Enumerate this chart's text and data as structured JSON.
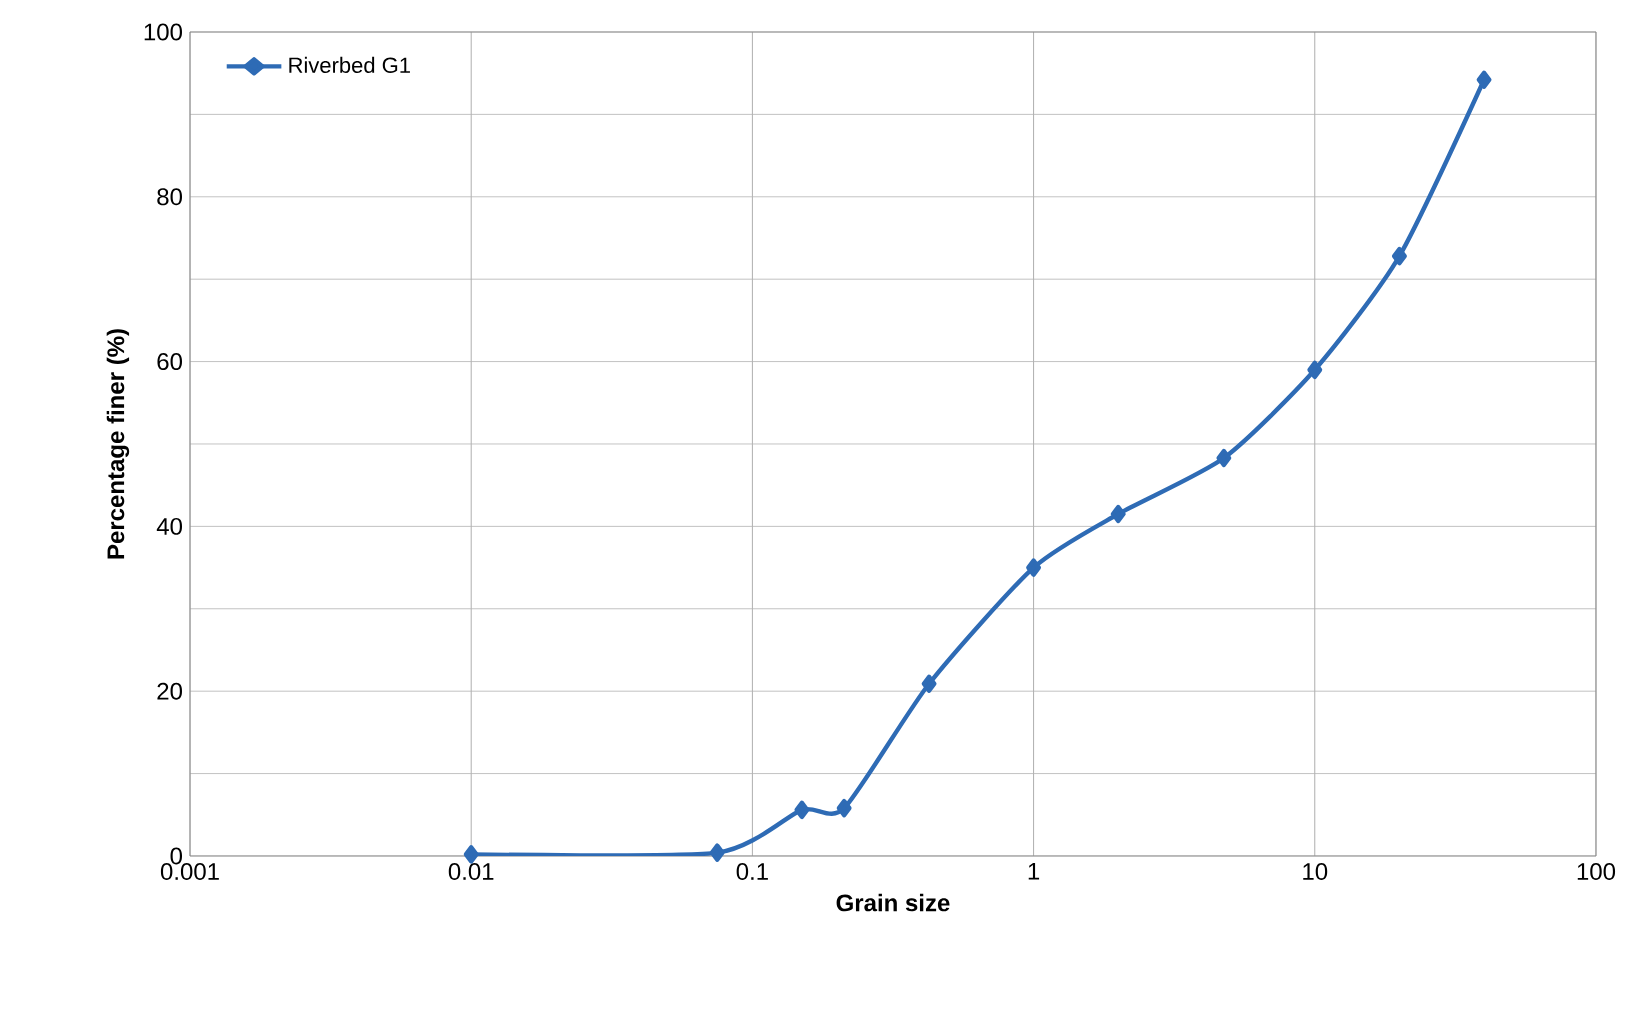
{
  "chart_data": {
    "type": "line",
    "xlabel": "Grain size",
    "ylabel": "Percentage finer (%)",
    "log": "x",
    "grid": true,
    "legend": "top left",
    "marker": "diamond",
    "line_style": "solid",
    "xlim": [
      0.001,
      100
    ],
    "xticks": [
      0.001,
      0.01,
      0.1,
      1,
      10,
      100
    ],
    "ylim": [
      0,
      100
    ],
    "yticks": [
      0,
      20,
      40,
      60,
      80,
      100
    ],
    "series": [
      {
        "name": "Riverbed G1",
        "color": "#2e6bb5",
        "x": [
          0.01,
          0.075,
          0.15,
          0.212,
          0.425,
          1,
          2,
          4.75,
          10,
          20,
          40
        ],
        "values": [
          0.2,
          0.4,
          5.6,
          5.8,
          20.9,
          35,
          41.5,
          48.3,
          59,
          72.8,
          94.2
        ]
      }
    ]
  }
}
